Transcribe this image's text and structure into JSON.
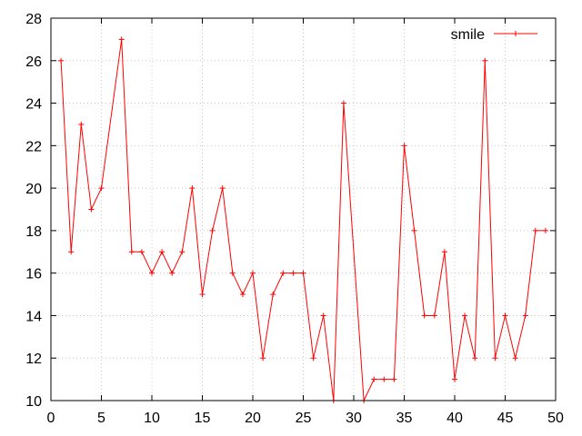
{
  "chart_data": {
    "type": "line",
    "title": "",
    "xlabel": "",
    "ylabel": "",
    "xlim": [
      0,
      50
    ],
    "ylim": [
      10,
      28
    ],
    "x_ticks": [
      0,
      5,
      10,
      15,
      20,
      25,
      30,
      35,
      40,
      45,
      50
    ],
    "y_ticks": [
      10,
      12,
      14,
      16,
      18,
      20,
      22,
      24,
      26,
      28
    ],
    "grid": true,
    "legend_position": "top-right",
    "series": [
      {
        "name": "smile",
        "color": "#ff0000",
        "marker": "plus",
        "x": [
          1,
          2,
          3,
          4,
          5,
          6,
          7,
          8,
          9,
          10,
          11,
          12,
          13,
          14,
          15,
          16,
          17,
          18,
          19,
          20,
          21,
          22,
          23,
          24,
          25,
          26,
          27,
          28,
          29,
          30,
          31,
          32,
          33,
          34,
          35,
          36,
          37,
          38,
          39,
          40,
          41,
          42,
          43,
          44,
          45,
          46,
          47,
          48,
          49
        ],
        "y": [
          26,
          17,
          23,
          19,
          20,
          null,
          27,
          17,
          17,
          16,
          17,
          16,
          17,
          20,
          15,
          18,
          20,
          16,
          15,
          16,
          12,
          15,
          16,
          16,
          16,
          12,
          14,
          10,
          24,
          null,
          10,
          11,
          11,
          11,
          22,
          18,
          14,
          14,
          17,
          11,
          14,
          12,
          26,
          12,
          14,
          12,
          14,
          18,
          18
        ]
      }
    ]
  }
}
